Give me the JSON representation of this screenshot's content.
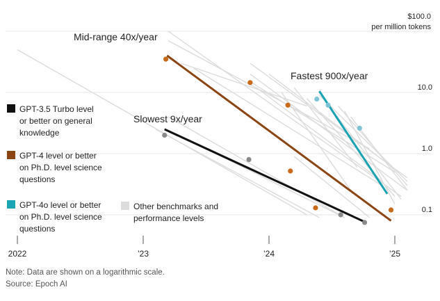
{
  "chart_data": {
    "type": "line",
    "scale": "log",
    "y_unit_label": [
      "$100.0",
      "per million tokens"
    ],
    "y_ticks": [
      {
        "value": 100,
        "label": ""
      },
      {
        "value": 10,
        "label": "10.0"
      },
      {
        "value": 1,
        "label": "1.0"
      },
      {
        "value": 0.1,
        "label": "0.1"
      }
    ],
    "ylim": [
      0.07,
      100
    ],
    "xlim": [
      2022.0,
      2025.15
    ],
    "x_ticks": [
      {
        "value": 2022.0,
        "label": "2022"
      },
      {
        "value": 2023.0,
        "label": "’23"
      },
      {
        "value": 2024.0,
        "label": "’24"
      },
      {
        "value": 2025.0,
        "label": "’25"
      }
    ],
    "series": [
      {
        "name": "GPT-3.5 Turbo level or better on general knowledge",
        "color": "#111111",
        "dot_color": "#8a8a8a",
        "annotation": "Slowest 9x/year",
        "trend": [
          [
            2023.17,
            2.5
          ],
          [
            2024.77,
            0.075
          ]
        ],
        "points": [
          [
            2023.17,
            2.0
          ],
          [
            2023.84,
            0.8
          ],
          [
            2024.57,
            0.1
          ],
          [
            2024.76,
            0.075
          ]
        ]
      },
      {
        "name": "GPT-4 level or better on Ph.D. level science questions",
        "color": "#8b4513",
        "dot_color": "#c9691a",
        "annotation": "Mid-range 40x/year",
        "trend": [
          [
            2023.19,
            40
          ],
          [
            2024.97,
            0.08
          ]
        ],
        "points": [
          [
            2023.18,
            35
          ],
          [
            2023.85,
            14.5
          ],
          [
            2024.15,
            6.2
          ],
          [
            2024.17,
            0.52
          ],
          [
            2024.37,
            0.13
          ],
          [
            2024.97,
            0.12
          ]
        ]
      },
      {
        "name": "GPT-4o level or better on Ph.D. level science questions",
        "color": "#1aa3b3",
        "dot_color": "#7ec4d6",
        "annotation": "Fastest 900x/year",
        "trend": [
          [
            2024.4,
            10.5
          ],
          [
            2024.94,
            0.22
          ]
        ],
        "points": [
          [
            2024.38,
            7.8
          ],
          [
            2024.47,
            6.2
          ],
          [
            2024.72,
            2.6
          ]
        ]
      }
    ],
    "other_benchmarks": {
      "label": "Other benchmarks and performance levels",
      "color": "#dcdcdc",
      "lines": [
        [
          [
            2022.0,
            50
          ],
          [
            2024.3,
            0.1
          ]
        ],
        [
          [
            2023.2,
            100
          ],
          [
            2025.05,
            0.2
          ]
        ],
        [
          [
            2023.2,
            70
          ],
          [
            2024.8,
            1.2
          ]
        ],
        [
          [
            2023.3,
            30
          ],
          [
            2024.3,
            6.0
          ]
        ],
        [
          [
            2023.4,
            25
          ],
          [
            2024.9,
            0.3
          ]
        ],
        [
          [
            2023.2,
            4.0
          ],
          [
            2024.6,
            0.09
          ]
        ],
        [
          [
            2023.1,
            2.5
          ],
          [
            2024.4,
            0.09
          ]
        ],
        [
          [
            2023.85,
            30
          ],
          [
            2025.1,
            0.4
          ]
        ],
        [
          [
            2023.85,
            20
          ],
          [
            2025.1,
            0.25
          ]
        ],
        [
          [
            2023.85,
            15
          ],
          [
            2025.0,
            0.5
          ]
        ],
        [
          [
            2023.9,
            12
          ],
          [
            2024.9,
            0.35
          ]
        ],
        [
          [
            2024.0,
            20
          ],
          [
            2024.9,
            0.8
          ]
        ],
        [
          [
            2024.1,
            10
          ],
          [
            2024.65,
            0.25
          ]
        ],
        [
          [
            2024.2,
            12
          ],
          [
            2024.7,
            0.6
          ]
        ],
        [
          [
            2024.3,
            8
          ],
          [
            2025.0,
            0.2
          ]
        ],
        [
          [
            2024.4,
            9
          ],
          [
            2025.1,
            0.35
          ]
        ],
        [
          [
            2024.45,
            7
          ],
          [
            2025.05,
            0.18
          ]
        ],
        [
          [
            2024.55,
            6
          ],
          [
            2025.1,
            0.3
          ]
        ],
        [
          [
            2024.6,
            5
          ],
          [
            2025.0,
            0.15
          ]
        ],
        [
          [
            2024.65,
            4
          ],
          [
            2025.1,
            0.25
          ]
        ],
        [
          [
            2024.2,
            0.9
          ],
          [
            2024.8,
            0.09
          ]
        ],
        [
          [
            2023.5,
            1.2
          ],
          [
            2024.6,
            0.09
          ]
        ]
      ]
    }
  },
  "footer": {
    "note": "Note: Data are shown on a logarithmic scale.",
    "source": "Source: Epoch AI"
  }
}
